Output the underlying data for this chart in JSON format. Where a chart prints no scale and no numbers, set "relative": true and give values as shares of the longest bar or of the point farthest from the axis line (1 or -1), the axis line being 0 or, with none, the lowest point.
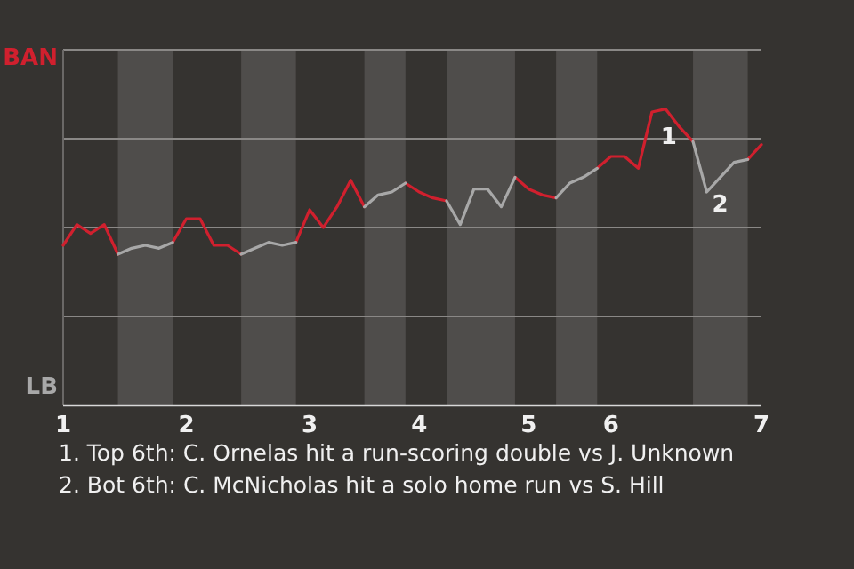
{
  "chart_data": {
    "type": "line",
    "relative": true,
    "categories": [
      "1",
      null,
      null,
      null,
      null,
      null,
      null,
      null,
      null,
      "2",
      null,
      null,
      null,
      null,
      null,
      null,
      null,
      null,
      "3",
      null,
      null,
      null,
      null,
      null,
      null,
      null,
      "4",
      null,
      null,
      null,
      null,
      null,
      null,
      null,
      "5",
      null,
      null,
      null,
      null,
      null,
      "6",
      null,
      null,
      null,
      null,
      null,
      null,
      null,
      null,
      null,
      null,
      "7"
    ],
    "series": [
      {
        "name": "BAN",
        "color": "#d0202e",
        "values": [
          0.54,
          0.61,
          0.58,
          0.61,
          0.51,
          null,
          null,
          null,
          0.55,
          0.63,
          0.63,
          0.54,
          0.54,
          0.51,
          null,
          null,
          null,
          0.55,
          0.66,
          0.6,
          0.67,
          0.76,
          0.67,
          null,
          null,
          0.75,
          0.72,
          0.7,
          0.69,
          null,
          null,
          null,
          null,
          0.77,
          0.73,
          0.71,
          0.7,
          null,
          null,
          0.8,
          0.84,
          0.84,
          0.8,
          0.99,
          1,
          0.94,
          0.89,
          null,
          null,
          null,
          0.83,
          0.88
        ]
      },
      {
        "name": "LB",
        "color": "#a8a8a8",
        "values": [
          null,
          null,
          null,
          null,
          0.51,
          0.53,
          0.54,
          0.53,
          0.55,
          null,
          null,
          null,
          null,
          0.51,
          0.53,
          0.55,
          0.54,
          0.55,
          null,
          null,
          null,
          null,
          0.67,
          0.71,
          0.72,
          0.75,
          null,
          null,
          0.69,
          0.61,
          0.73,
          0.73,
          0.67,
          0.77,
          null,
          null,
          0.7,
          0.75,
          0.77,
          0.8,
          null,
          null,
          null,
          null,
          null,
          null,
          0.89,
          0.72,
          0.77,
          0.82,
          0.83,
          null
        ]
      }
    ],
    "grid": true,
    "legend": "left",
    "annotations": [
      {
        "text": "1",
        "y": 0.99
      },
      {
        "text": "2",
        "y": 0.72
      },
      "1. Top 6th: C. Ornelas hit a run-scoring double vs J. Unknown",
      "2. Bot 6th: C. McNicholas hit a solo home run vs S. Hill"
    ]
  }
}
